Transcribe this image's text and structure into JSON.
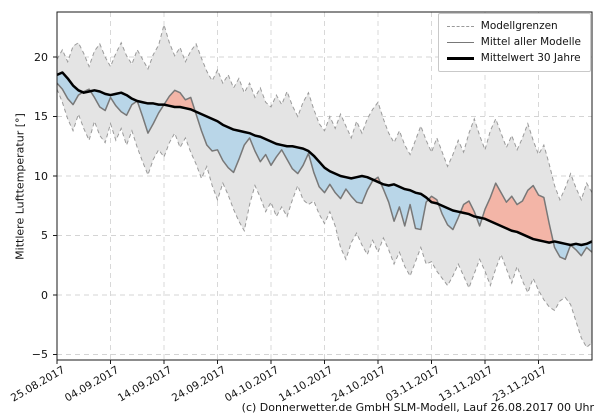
{
  "caption": "(c) Donnerwetter.de GmbH SLM-Modell, Lauf 26.08.2017 00 Uhr",
  "chart_data": {
    "type": "line",
    "title": "",
    "xlabel": "",
    "ylabel": "Mittlere Lufttemperatur [°]",
    "ylim": [
      -5.5,
      23.8
    ],
    "grid": true,
    "legend_position": "upper right",
    "yticks": [
      20,
      15,
      10,
      5,
      0,
      -5
    ],
    "ytick_labels": [
      "20",
      "15",
      "10",
      "5",
      "0",
      "−5"
    ],
    "xtick_labels": [
      "25.08.2017",
      "04.09.2017",
      "14.09.2017",
      "24.09.2017",
      "04.10.2017",
      "14.10.2017",
      "24.10.2017",
      "03.11.2017",
      "13.11.2017",
      "23.11.2017"
    ],
    "xtick_indices": [
      0,
      10,
      20,
      30,
      40,
      50,
      60,
      70,
      80,
      90
    ],
    "n_points": 101,
    "legend": [
      {
        "label": "Modellgrenzen",
        "style": "dashed-thin",
        "color": "#9a9a9a"
      },
      {
        "label": "Mittel aller Modelle",
        "style": "solid",
        "color": "#787878"
      },
      {
        "label": "Mittelwert 30 Jahre",
        "style": "solid-thick",
        "color": "#000000"
      }
    ],
    "colors": {
      "envelope_fill": "#e4e4e4",
      "envelope_stroke": "#9a9a9a",
      "model_mean_line": "#787878",
      "climate_mean_line": "#000000",
      "below_fill": "#b9d6e8",
      "above_fill": "#f3b5a7",
      "grid": "#d4d4d4",
      "spine": "#1a1a1a"
    },
    "series": [
      {
        "name": "Modellgrenzen Obergrenze",
        "values": [
          19.8,
          20.6,
          19.6,
          20.9,
          21.2,
          20.3,
          19.2,
          20.5,
          21.1,
          20.0,
          19.2,
          20.3,
          21.2,
          20.1,
          19.4,
          20.6,
          19.8,
          19.0,
          20.2,
          21.0,
          22.7,
          21.2,
          20.1,
          20.8,
          19.6,
          20.5,
          21.1,
          19.9,
          18.8,
          18.0,
          18.9,
          17.8,
          18.5,
          17.4,
          18.2,
          17.0,
          17.8,
          16.6,
          17.4,
          16.2,
          15.8,
          16.8,
          16.0,
          17.1,
          15.9,
          15.0,
          16.2,
          17.0,
          15.6,
          14.4,
          13.8,
          15.0,
          14.0,
          15.2,
          14.2,
          13.2,
          14.6,
          13.6,
          14.8,
          15.6,
          16.2,
          14.8,
          13.6,
          12.8,
          13.8,
          12.6,
          11.8,
          13.0,
          14.2,
          13.0,
          12.0,
          13.2,
          12.0,
          10.8,
          11.8,
          13.0,
          12.0,
          13.6,
          14.8,
          13.4,
          12.2,
          13.8,
          14.8,
          13.6,
          12.4,
          13.4,
          12.2,
          13.2,
          14.4,
          13.0,
          11.8,
          12.6,
          11.0,
          9.2,
          8.0,
          9.0,
          10.2,
          9.0,
          8.0,
          9.4,
          8.6
        ]
      },
      {
        "name": "Modellgrenzen Untergrenze",
        "values": [
          17.3,
          16.2,
          14.8,
          13.8,
          15.2,
          14.0,
          13.0,
          14.6,
          13.4,
          12.8,
          14.4,
          13.0,
          14.0,
          12.6,
          13.8,
          12.4,
          11.2,
          10.1,
          11.4,
          12.2,
          11.6,
          12.8,
          13.6,
          12.4,
          13.2,
          12.0,
          11.0,
          9.8,
          10.8,
          9.2,
          8.0,
          9.4,
          8.4,
          7.2,
          6.2,
          5.4,
          7.6,
          9.2,
          8.2,
          7.0,
          7.8,
          6.6,
          7.4,
          6.6,
          8.0,
          9.2,
          8.0,
          7.6,
          7.9,
          6.8,
          6.0,
          7.0,
          5.8,
          4.0,
          3.0,
          4.4,
          5.2,
          4.2,
          3.4,
          4.6,
          3.6,
          4.8,
          3.8,
          2.6,
          3.6,
          2.4,
          1.6,
          2.8,
          4.0,
          2.6,
          2.8,
          2.0,
          1.4,
          0.8,
          1.6,
          2.6,
          1.6,
          0.6,
          1.8,
          3.0,
          2.0,
          0.8,
          2.2,
          3.4,
          2.2,
          1.0,
          2.4,
          1.2,
          0.2,
          1.4,
          0.4,
          -0.4,
          -1.0,
          -1.3,
          -0.5,
          -0.2,
          -0.8,
          -2.2,
          -3.6,
          -4.4,
          -4.0
        ]
      },
      {
        "name": "Mittel aller Modelle",
        "values": [
          17.8,
          17.3,
          16.5,
          16.0,
          16.8,
          17.1,
          17.3,
          16.6,
          15.8,
          15.5,
          16.6,
          15.9,
          15.4,
          15.1,
          16.0,
          16.3,
          15.0,
          13.6,
          14.4,
          15.3,
          16.0,
          16.7,
          17.2,
          17.0,
          16.4,
          16.6,
          15.2,
          13.8,
          12.6,
          12.1,
          12.2,
          11.3,
          10.7,
          10.3,
          11.4,
          12.6,
          13.2,
          12.1,
          11.2,
          11.8,
          10.9,
          11.6,
          12.2,
          11.4,
          10.6,
          10.2,
          10.9,
          11.9,
          10.3,
          9.1,
          8.6,
          9.3,
          8.6,
          8.1,
          8.9,
          8.3,
          7.8,
          7.7,
          8.8,
          9.6,
          9.9,
          8.9,
          7.8,
          6.2,
          7.4,
          5.8,
          7.6,
          5.6,
          5.5,
          7.8,
          8.3,
          8.0,
          6.8,
          5.9,
          5.5,
          6.5,
          7.6,
          7.9,
          7.0,
          5.8,
          7.2,
          8.2,
          9.4,
          8.6,
          7.8,
          8.3,
          7.6,
          7.9,
          8.8,
          9.2,
          8.4,
          8.2,
          6.0,
          4.0,
          3.2,
          3.0,
          4.2,
          3.8,
          3.3,
          4.0,
          3.6
        ]
      },
      {
        "name": "Mittelwert 30 Jahre",
        "values": [
          18.5,
          18.7,
          18.2,
          17.6,
          17.2,
          17.0,
          17.1,
          17.2,
          17.1,
          16.9,
          16.8,
          16.9,
          17.0,
          16.8,
          16.5,
          16.3,
          16.2,
          16.1,
          16.1,
          16.0,
          16.0,
          15.9,
          15.8,
          15.8,
          15.7,
          15.6,
          15.4,
          15.2,
          15.0,
          14.8,
          14.6,
          14.3,
          14.1,
          13.9,
          13.8,
          13.7,
          13.6,
          13.4,
          13.3,
          13.1,
          12.9,
          12.7,
          12.6,
          12.5,
          12.5,
          12.4,
          12.3,
          12.1,
          11.7,
          11.2,
          10.7,
          10.4,
          10.2,
          10.0,
          9.9,
          9.8,
          9.9,
          10.0,
          9.9,
          9.7,
          9.5,
          9.3,
          9.2,
          9.3,
          9.1,
          8.9,
          8.8,
          8.6,
          8.5,
          8.2,
          7.8,
          7.7,
          7.5,
          7.3,
          7.1,
          7.0,
          6.9,
          6.8,
          6.6,
          6.5,
          6.4,
          6.2,
          6.0,
          5.8,
          5.6,
          5.4,
          5.3,
          5.1,
          4.9,
          4.7,
          4.6,
          4.5,
          4.4,
          4.5,
          4.4,
          4.3,
          4.2,
          4.3,
          4.2,
          4.3,
          4.5
        ]
      }
    ]
  }
}
